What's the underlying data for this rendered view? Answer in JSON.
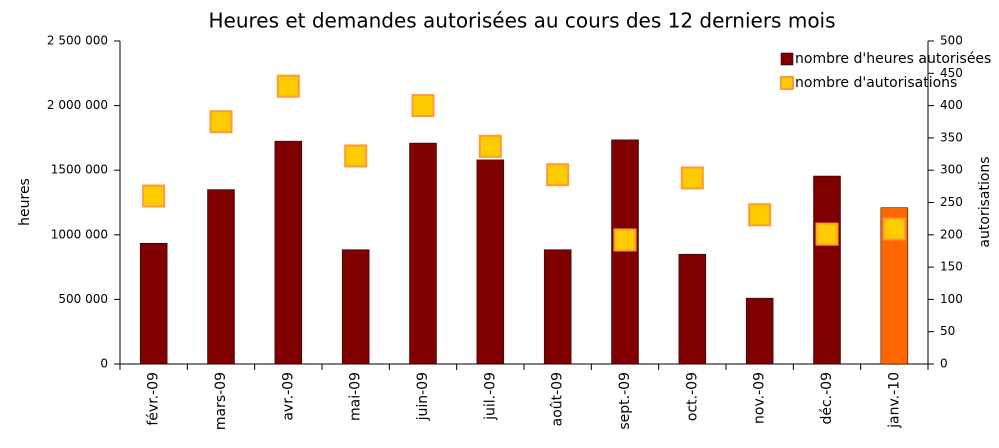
{
  "chart_data": {
    "type": "bar",
    "title": "Heures et demandes autorisées au cours des 12 derniers mois",
    "ylabel": "heures",
    "y2label": "autorisations",
    "categories": [
      "févr.-09",
      "mars-09",
      "avr.-09",
      "mai-09",
      "juin-09",
      "juil.-09",
      "août-09",
      "sept.-09",
      "oct.-09",
      "nov.-09",
      "déc.-09",
      "janv.-10"
    ],
    "series": [
      {
        "name": "nombre d'heures autorisées",
        "type": "bar",
        "color": "#800000",
        "colors": [
          "#800000",
          "#800000",
          "#800000",
          "#800000",
          "#800000",
          "#800000",
          "#800000",
          "#800000",
          "#800000",
          "#800000",
          "#800000",
          "#ff6600"
        ],
        "values": [
          935000,
          1350000,
          1725000,
          885000,
          1710000,
          1580000,
          885000,
          1735000,
          850000,
          510000,
          1455000,
          1210000
        ]
      },
      {
        "name": "nombre d'autorisations",
        "type": "marker",
        "axis": "y2",
        "color": "#ffcc00",
        "edge_color": "#ff9933",
        "values": [
          260,
          375,
          430,
          322,
          400,
          337,
          293,
          192,
          288,
          231,
          201,
          209
        ]
      }
    ],
    "ylim": [
      0,
      2500000
    ],
    "yticks": [
      0,
      {
        "value": 500000,
        "label": "500 000"
      },
      {
        "value": 1000000,
        "label": "1000 000"
      },
      {
        "value": 1500000,
        "label": "1500 000"
      },
      {
        "value": 2000000,
        "label": "2 000 000"
      },
      {
        "value": 2500000,
        "label": "2 500 000"
      }
    ],
    "y2lim": [
      0,
      500
    ],
    "y2ticks": [
      0,
      50,
      100,
      150,
      200,
      250,
      300,
      350,
      400,
      450,
      500
    ],
    "legend": "top-right"
  }
}
